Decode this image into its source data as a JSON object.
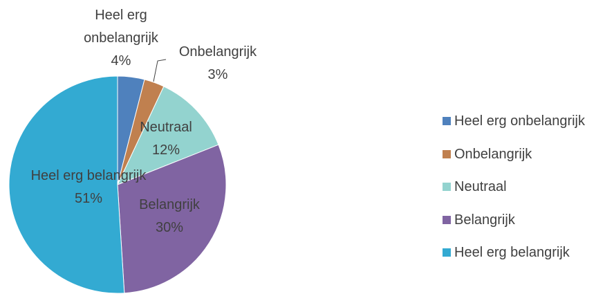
{
  "chart_data": {
    "type": "pie",
    "categories": [
      "Heel erg onbelangrijk",
      "Onbelangrijk",
      "Neutraal",
      "Belangrijk",
      "Heel erg belangrijk"
    ],
    "values": [
      4,
      3,
      12,
      30,
      51
    ],
    "value_labels": [
      "4%",
      "3%",
      "12%",
      "30%",
      "51%"
    ],
    "colors": [
      "#4f81bd",
      "#c0804f",
      "#93d3cf",
      "#8064a2",
      "#33aad2"
    ],
    "legend": "right"
  }
}
